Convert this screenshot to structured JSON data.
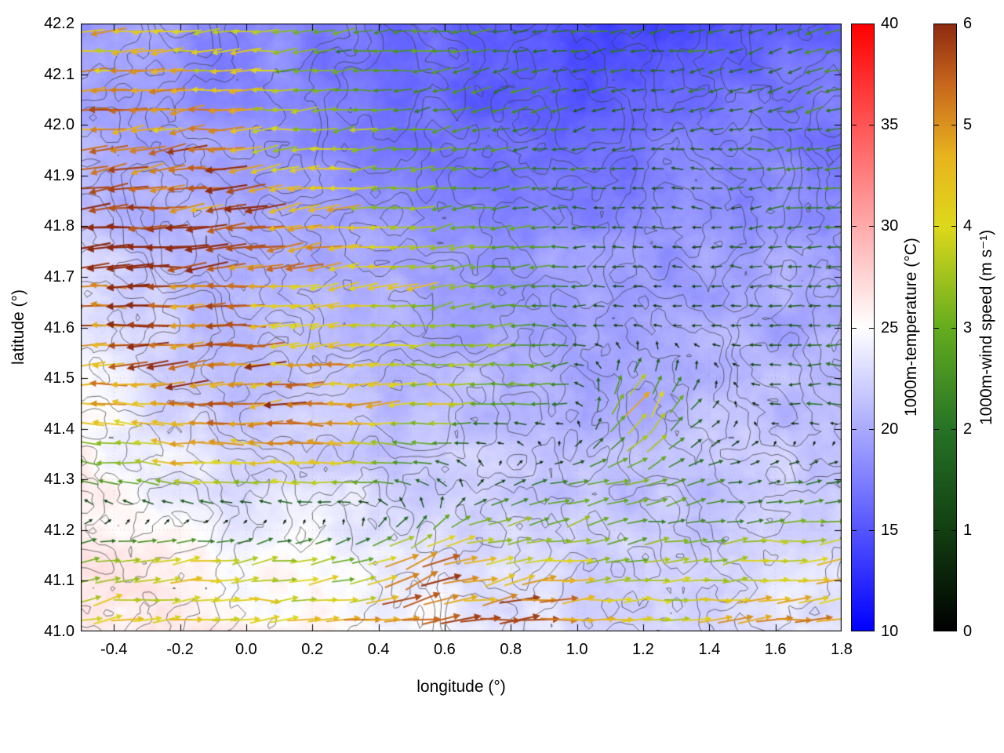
{
  "page": {
    "background": "#ffffff"
  },
  "chart_data": {
    "type": "heatmap",
    "title": "",
    "xlabel": "longitude (°)",
    "ylabel": "latitude (°)",
    "xlim": [
      -0.5,
      1.8
    ],
    "ylim": [
      41.0,
      42.2
    ],
    "x_tick_labels": [
      "-0.4",
      "-0.2",
      "0.0",
      "0.2",
      "0.4",
      "0.6",
      "0.8",
      "1.0",
      "1.2",
      "1.4",
      "1.6",
      "1.8"
    ],
    "y_tick_labels": [
      "41.0",
      "41.1",
      "41.2",
      "41.3",
      "41.4",
      "41.5",
      "41.6",
      "41.7",
      "41.8",
      "41.9",
      "42.0",
      "42.1",
      "42.2"
    ],
    "grid": true,
    "contour_color": "#3a3a3a",
    "colorbars": [
      {
        "name": "temperature",
        "label": "1000m-temperature (°C)",
        "range": [
          10,
          40
        ],
        "tick_labels": [
          "10",
          "15",
          "20",
          "25",
          "30",
          "35",
          "40"
        ],
        "stops": [
          [
            10,
            "#0000ff"
          ],
          [
            25,
            "#ffffff"
          ],
          [
            40,
            "#ff0000"
          ]
        ]
      },
      {
        "name": "wind-speed",
        "label": "1000m-wind speed (m s⁻¹)",
        "range": [
          0,
          6
        ],
        "tick_labels": [
          "0",
          "1",
          "2",
          "3",
          "4",
          "5",
          "6"
        ],
        "stops": [
          [
            0,
            "#000000"
          ],
          [
            1,
            "#123f12"
          ],
          [
            2,
            "#267326"
          ],
          [
            3,
            "#64ad1e"
          ],
          [
            4,
            "#ded81c"
          ],
          [
            4.7,
            "#e8b31e"
          ],
          [
            5.4,
            "#c8671d"
          ],
          [
            6,
            "#8e2a10"
          ]
        ]
      }
    ],
    "temperature_field": {
      "lon": [
        -0.5,
        -0.29,
        -0.08,
        0.13,
        0.34,
        0.55,
        0.75,
        0.96,
        1.17,
        1.38,
        1.59,
        1.8
      ],
      "lat": [
        42.2,
        42.05,
        41.9,
        41.75,
        41.6,
        41.45,
        41.3,
        41.15,
        41.0
      ],
      "values_c": [
        [
          19,
          19,
          18,
          18,
          17,
          16,
          15,
          14.5,
          14.5,
          15,
          16,
          16
        ],
        [
          20,
          19,
          18.5,
          18,
          17,
          16.5,
          15.5,
          15,
          16,
          17,
          17,
          17
        ],
        [
          21,
          20,
          20,
          19,
          18,
          17.5,
          17,
          17,
          17.5,
          18,
          18,
          18
        ],
        [
          22.5,
          21,
          20.5,
          20,
          20,
          19.5,
          19,
          19,
          19,
          19,
          19.5,
          19.5
        ],
        [
          24,
          22,
          21,
          21,
          20.5,
          20,
          20,
          19.5,
          20,
          20,
          20,
          20
        ],
        [
          25.5,
          23,
          22,
          22,
          21,
          21,
          21,
          20,
          20.5,
          21,
          21,
          21
        ],
        [
          25.5,
          24,
          23,
          23,
          22.5,
          22,
          22,
          21,
          21,
          21.5,
          22,
          22
        ],
        [
          26,
          26,
          25,
          25,
          24,
          23.5,
          23,
          22,
          22,
          22,
          22.5,
          23
        ],
        [
          26.5,
          26,
          26,
          25.5,
          25,
          24.5,
          24,
          23,
          23,
          23,
          23.5,
          24
        ]
      ]
    },
    "wind_field": {
      "lon": [
        -0.5,
        -0.29,
        -0.08,
        0.13,
        0.34,
        0.55,
        0.75,
        0.96,
        1.17,
        1.38,
        1.59,
        1.8
      ],
      "lat": [
        42.2,
        42.05,
        41.9,
        41.75,
        41.6,
        41.45,
        41.3,
        41.15,
        41.0
      ],
      "u_ms": [
        [
          -4.5,
          -4,
          -3.5,
          -3,
          -2.5,
          -2.5,
          -2.5,
          -2,
          -2,
          -2,
          -2,
          -2.5
        ],
        [
          -5,
          -5,
          -4.5,
          -3.5,
          -3,
          -2.5,
          -2.5,
          -2,
          -1.5,
          -2,
          -2,
          -2.5
        ],
        [
          -6,
          -5.5,
          -5.5,
          -4.5,
          -3.5,
          -3,
          -2.5,
          -2,
          -1.5,
          -1.5,
          -2,
          -2.5
        ],
        [
          -6,
          -6,
          -5.5,
          -5,
          -4,
          -3.5,
          -3,
          -2,
          -1,
          -1,
          -1.5,
          -2
        ],
        [
          -5,
          -5.5,
          -5,
          -4.5,
          -4,
          -3.5,
          -3,
          -2,
          -1,
          -1,
          -1.5,
          -2
        ],
        [
          -4.5,
          -5,
          -5.5,
          -5.5,
          -5,
          -4,
          -3,
          -2,
          3,
          1,
          -1.5,
          -2
        ],
        [
          -3,
          -3.5,
          -4,
          -4,
          -3.5,
          -2,
          1,
          2,
          3,
          2,
          1.5,
          2
        ],
        [
          3.5,
          3.5,
          4,
          3.5,
          3,
          4.5,
          4,
          3.5,
          3,
          3,
          3.5,
          4
        ],
        [
          4,
          4.5,
          4.5,
          4.5,
          5,
          6,
          5.5,
          5,
          4.5,
          4.5,
          5,
          5.5
        ]
      ],
      "v_ms": [
        [
          0,
          -0.3,
          -0.3,
          -0.3,
          -0.3,
          -0.3,
          -0.3,
          -0.3,
          -0.3,
          -0.3,
          -0.5,
          -0.5
        ],
        [
          -0.5,
          -0.5,
          -0.5,
          -0.3,
          -0.3,
          -0.3,
          -0.5,
          -0.5,
          -0.3,
          -0.3,
          -0.5,
          -0.5
        ],
        [
          -0.5,
          -0.5,
          -0.5,
          -0.5,
          -0.5,
          -0.3,
          -0.3,
          -0.3,
          0,
          0,
          -0.3,
          -0.3
        ],
        [
          -0.3,
          -0.5,
          -0.5,
          -0.5,
          -0.3,
          -0.3,
          -0.3,
          0,
          0,
          0,
          0,
          -0.3
        ],
        [
          0,
          -0.3,
          -0.3,
          -0.3,
          -0.3,
          -0.3,
          -0.3,
          0,
          0.3,
          0,
          0,
          0
        ],
        [
          0.3,
          0,
          -0.3,
          -0.3,
          -0.3,
          -0.3,
          0,
          0,
          4,
          1,
          0,
          0
        ],
        [
          0.5,
          0.3,
          0,
          0,
          0,
          1,
          0.5,
          0.5,
          1,
          0.5,
          0.3,
          0.3
        ],
        [
          0.5,
          0.5,
          0.5,
          0.5,
          1,
          2.5,
          1,
          0.5,
          0.3,
          0.3,
          0.3,
          0.3
        ],
        [
          0.3,
          0.3,
          0.3,
          0.3,
          0.3,
          0.5,
          0.5,
          0.3,
          0.3,
          0.3,
          0.3,
          0.3
        ]
      ]
    }
  }
}
